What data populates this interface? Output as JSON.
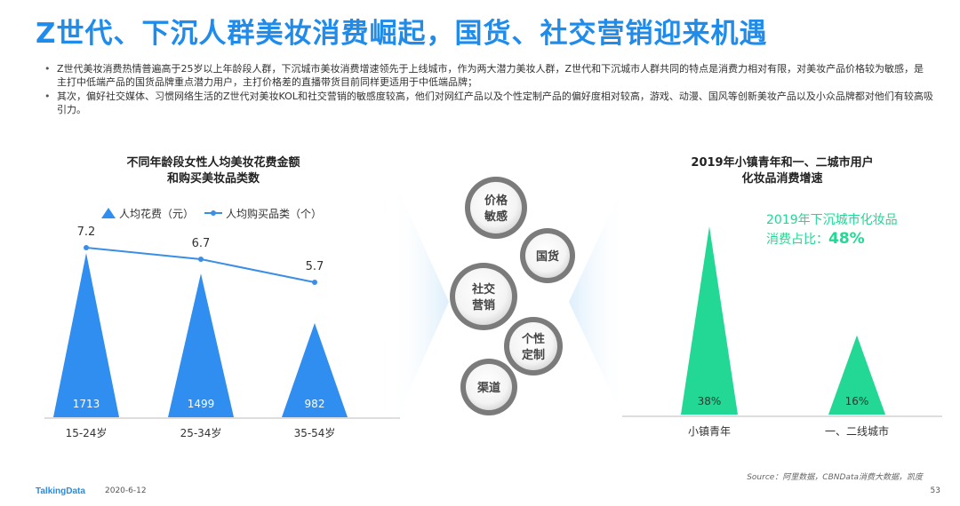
{
  "page": {
    "title": "Z世代、下沉人群美妆消费崛起，国货、社交营销迎来机遇",
    "bullets": [
      "Z世代美妆消费热情普遍高于25岁以上年龄段人群，下沉城市美妆消费增速领先于上线城市，作为两大潜力美妆人群，Z世代和下沉城市人群共同的特点是消费力相对有限，对美妆产品价格较为敏感，是主打中低端产品的国货品牌重点潜力用户，主打价格差的直播带货目前同样更适用于中低端品牌；",
      "其次，偏好社交媒体、习惯网络生活的Z世代对美妆KOL和社交营销的敏感度较高，他们对网红产品以及个性定制产品的偏好度相对较高，游戏、动漫、国风等创新美妆产品以及小众品牌都对他们有较高吸引力。"
    ],
    "source": "Source：阿里数据，CBNData消费大数据，凯度",
    "footer_logo": "TalkingData",
    "footer_date": "2020-6-12",
    "page_number": "53",
    "colors": {
      "accent": "#1f8ceb",
      "bar_blue": "#2f8ef0",
      "line_blue": "#3a8ee6",
      "green": "#22d894",
      "bubble_text": "#444444"
    }
  },
  "left_chart": {
    "title_line1": "不同年龄段女性人均美妆花费金额",
    "title_line2": "和购买美妆品类数"
  },
  "right_chart": {
    "title_line1": "2019年小镇青年和一、二城市用户",
    "title_line2": "化妆品消费增速",
    "callout_line1": "2019年下沉城市化妆品",
    "callout_label": "消费占比：",
    "callout_value": "48%"
  },
  "bubbles": [
    {
      "line1": "价格",
      "line2": "敏感"
    },
    {
      "line1": "国货",
      "line2": ""
    },
    {
      "line1": "社交",
      "line2": "营销"
    },
    {
      "line1": "个性",
      "line2": "定制"
    },
    {
      "line1": "渠道",
      "line2": ""
    }
  ],
  "chart_data": [
    {
      "type": "bar",
      "categories": [
        "15-24岁",
        "25-34岁",
        "35-54岁"
      ],
      "series": [
        {
          "name": "人均花费（元）",
          "type": "triangle-bar",
          "values": [
            1713,
            1499,
            982
          ]
        },
        {
          "name": "人均购买品类（个）",
          "type": "line",
          "values": [
            7.2,
            6.7,
            5.7
          ]
        }
      ]
    },
    {
      "type": "bar",
      "categories": [
        "小镇青年",
        "一、二线城市"
      ],
      "values": [
        38,
        16
      ],
      "value_labels": [
        "38%",
        "16%"
      ],
      "unit": "%"
    }
  ]
}
